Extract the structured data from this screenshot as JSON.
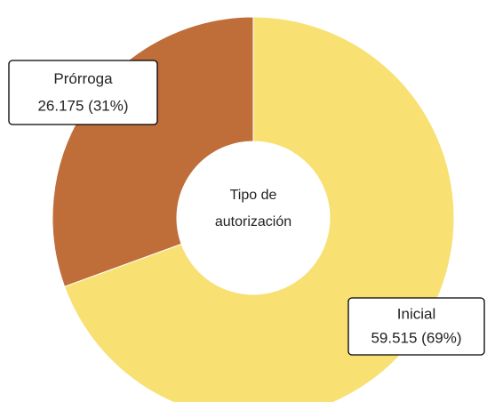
{
  "chart_data": {
    "type": "donut",
    "title": "Tipo de autorización",
    "categories": [
      "Inicial",
      "Prórroga"
    ],
    "values": [
      59515,
      26175
    ],
    "value_labels": [
      "59.515 (69%)",
      "26.175 (31%)"
    ],
    "colors": [
      "#f8e073",
      "#bf6e3a"
    ]
  }
}
